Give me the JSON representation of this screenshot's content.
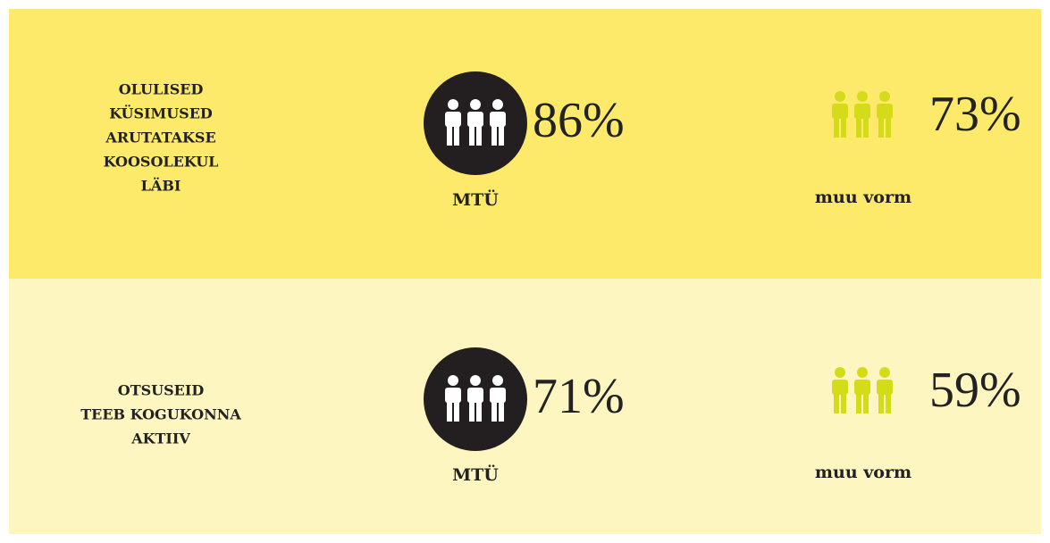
{
  "rows": [
    {
      "label": [
        "OLULISED",
        "KÜSIMUSED",
        "ARUTATAKSE",
        "KOOSOLEKUL",
        "LÄBI"
      ],
      "groups": [
        {
          "value": "86%",
          "name": "MTÜ"
        },
        {
          "value": "73%",
          "name": "muu vorm"
        }
      ]
    },
    {
      "label": [
        "OTSUSEID",
        "TEEB KOGUKONNA",
        "AKTIIV"
      ],
      "groups": [
        {
          "value": "71%",
          "name": "MTÜ"
        },
        {
          "value": "59%",
          "name": "muu vorm"
        }
      ]
    }
  ]
}
